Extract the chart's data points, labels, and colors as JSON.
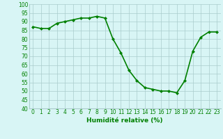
{
  "x": [
    0,
    1,
    2,
    3,
    4,
    5,
    6,
    7,
    8,
    9,
    10,
    11,
    12,
    13,
    14,
    15,
    16,
    17,
    18,
    19,
    20,
    21,
    22,
    23
  ],
  "y": [
    87,
    86,
    86,
    89,
    90,
    91,
    92,
    92,
    93,
    92,
    80,
    72,
    62,
    56,
    52,
    51,
    50,
    50,
    49,
    56,
    73,
    81,
    84,
    84
  ],
  "line_color": "#008000",
  "marker": "D",
  "marker_size": 2.0,
  "xlabel": "Humidité relative (%)",
  "xlabel_color": "#008000",
  "ylim": [
    40,
    100
  ],
  "yticks": [
    40,
    45,
    50,
    55,
    60,
    65,
    70,
    75,
    80,
    85,
    90,
    95,
    100
  ],
  "xticks": [
    0,
    1,
    2,
    3,
    4,
    5,
    6,
    7,
    8,
    9,
    10,
    11,
    12,
    13,
    14,
    15,
    16,
    17,
    18,
    19,
    20,
    21,
    22,
    23
  ],
  "background_color": "#d8f5f5",
  "grid_color": "#aacccc",
  "tick_color": "#008000",
  "tick_fontsize": 5.5,
  "xlabel_fontsize": 6.5,
  "line_width": 1.2
}
